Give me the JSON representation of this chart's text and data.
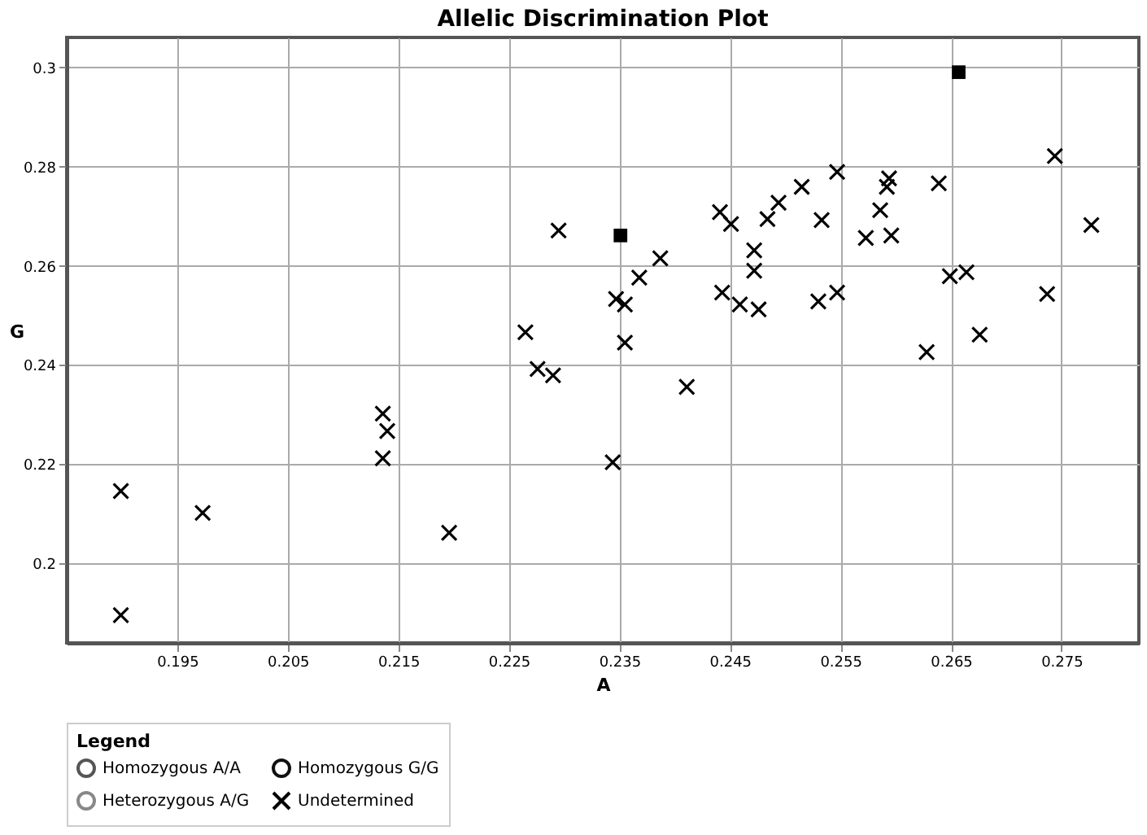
{
  "chart_data": {
    "type": "scatter",
    "title": "Allelic Discrimination Plot",
    "xlabel": "A",
    "ylabel": "G",
    "legend_title": "Legend",
    "legend": "bottom",
    "grid": true,
    "xlim": [
      0.185,
      0.282
    ],
    "ylim": [
      0.184,
      0.306
    ],
    "xticks": [
      0.195,
      0.205,
      0.215,
      0.225,
      0.235,
      0.245,
      0.255,
      0.265,
      0.275
    ],
    "yticks": [
      0.2,
      0.22,
      0.24,
      0.26,
      0.28,
      0.3
    ],
    "series": [
      {
        "name": "Homozygous A/A",
        "color": "#555555",
        "marker": "circle"
      },
      {
        "name": "Homozygous G/G",
        "color": "#111111",
        "marker": "circle"
      },
      {
        "name": "Heterozygous A/G",
        "color": "#888888",
        "marker": "circle"
      },
      {
        "name": "Undetermined",
        "color": "#000000",
        "marker": "cross",
        "x": [
          0.2295,
          0.2265,
          0.2276,
          0.229,
          0.1899,
          0.1973,
          0.1899,
          0.2136,
          0.214,
          0.2136,
          0.2196,
          0.2744,
          0.2777,
          0.2547,
          0.2515,
          0.2494,
          0.2441,
          0.2451,
          0.2484,
          0.2533,
          0.2594,
          0.2592,
          0.2639,
          0.2586,
          0.2573,
          0.2596,
          0.2472,
          0.2472,
          0.2387,
          0.2368,
          0.2347,
          0.2355,
          0.2355,
          0.2443,
          0.2459,
          0.2476,
          0.253,
          0.2547,
          0.2649,
          0.2664,
          0.2737,
          0.2676,
          0.2628,
          0.2411,
          0.2344
        ],
        "values": [
          0.2671,
          0.2466,
          0.2392,
          0.2379,
          0.2146,
          0.2102,
          0.1896,
          0.2302,
          0.2267,
          0.2212,
          0.2062,
          0.2821,
          0.2682,
          0.2789,
          0.2759,
          0.2727,
          0.2708,
          0.2684,
          0.2694,
          0.2692,
          0.2776,
          0.2759,
          0.2766,
          0.2712,
          0.2656,
          0.2661,
          0.2631,
          0.259,
          0.2615,
          0.2576,
          0.2533,
          0.2522,
          0.2445,
          0.2546,
          0.2522,
          0.2512,
          0.2528,
          0.2546,
          0.2579,
          0.2587,
          0.2543,
          0.2461,
          0.2426,
          0.2356,
          0.2204
        ]
      },
      {
        "color": "#000000",
        "marker": "square",
        "x": [
          0.2657,
          0.2351
        ],
        "values": [
          0.299,
          0.2661
        ]
      }
    ]
  }
}
